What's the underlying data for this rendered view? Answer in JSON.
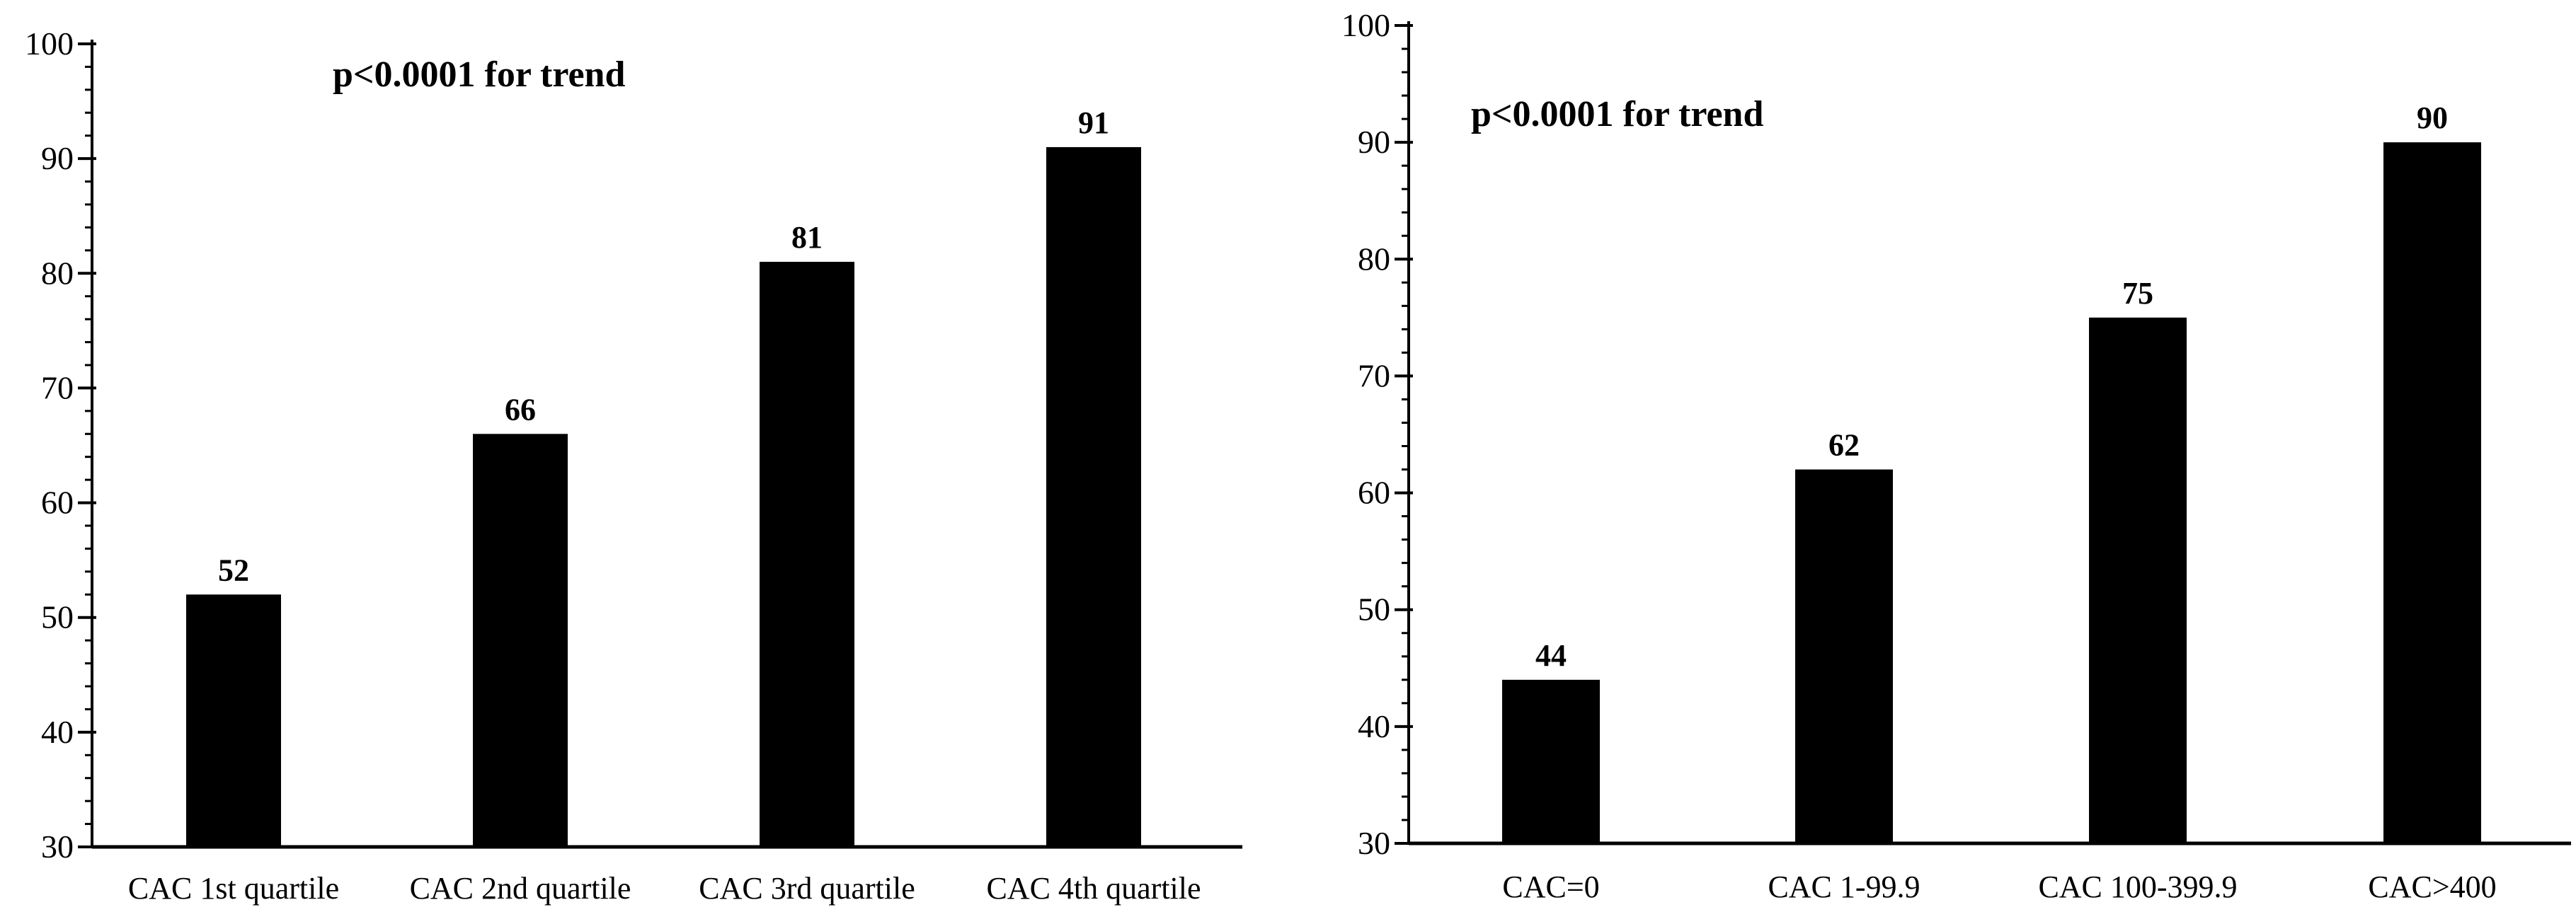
{
  "colors": {
    "bar": "#000000",
    "axis": "#000000",
    "background": "#ffffff"
  },
  "chart_data": [
    {
      "type": "bar",
      "title": "",
      "xlabel": "",
      "ylabel": "",
      "annotation": "p<0.0001 for trend",
      "categories": [
        "CAC 1st quartile",
        "CAC 2nd quartile",
        "CAC 3rd quartile",
        "CAC 4th quartile"
      ],
      "values": [
        52,
        66,
        81,
        91
      ],
      "data_labels": [
        "52",
        "66",
        "81",
        "91"
      ],
      "ylim": [
        30,
        100
      ],
      "yticks": [
        30,
        40,
        50,
        60,
        70,
        80,
        90,
        100
      ],
      "grid": false,
      "legend": "none"
    },
    {
      "type": "bar",
      "title": "",
      "xlabel": "",
      "ylabel": "",
      "annotation": "p<0.0001 for trend",
      "categories": [
        "CAC=0",
        "CAC 1-99.9",
        "CAC 100-399.9",
        "CAC>400"
      ],
      "values": [
        44,
        62,
        75,
        90
      ],
      "data_labels": [
        "44",
        "62",
        "75",
        "90"
      ],
      "ylim": [
        30,
        100
      ],
      "yticks": [
        30,
        40,
        50,
        60,
        70,
        80,
        90,
        100
      ],
      "grid": false,
      "legend": "none"
    }
  ]
}
